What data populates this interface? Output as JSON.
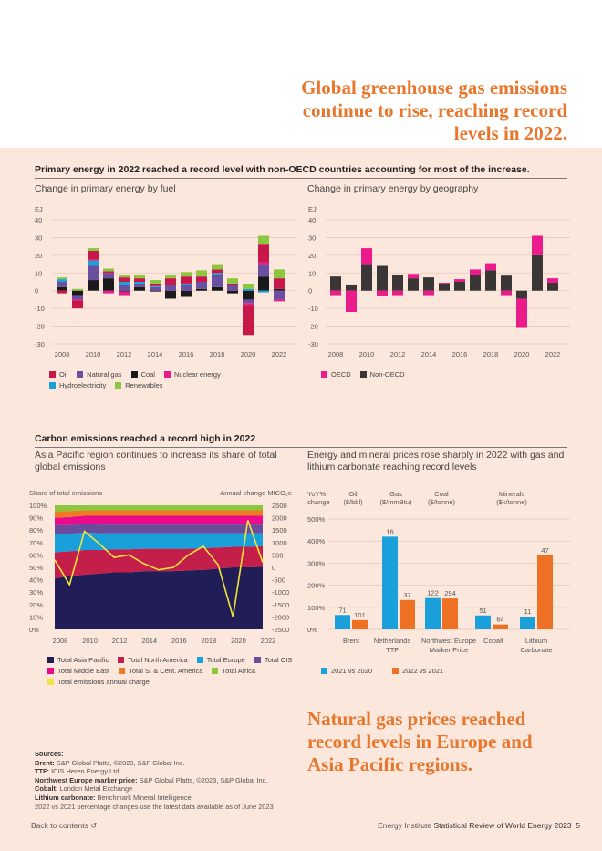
{
  "headline_top": "Global greenhouse gas emissions continue to rise, reaching record levels in 2022.",
  "headline_bottom": "Natural gas prices reached record levels in Europe and Asia Pacific regions.",
  "section1": {
    "title": "Primary energy in 2022 reached a record level with non-OECD countries accounting for most of the increase.",
    "left_sub": "Change in primary energy by fuel",
    "right_sub": "Change in primary energy by geography"
  },
  "section2": {
    "title": "Carbon emissions reached a record high in 2022",
    "left_sub": "Asia Pacific region continues to increase its share of total global emissions",
    "right_sub": "Energy and mineral prices rose sharply in 2022 with gas and lithium carbonate reaching record levels"
  },
  "colors": {
    "oil": "#c8184a",
    "gas": "#6b4fa0",
    "coal": "#1a1a1a",
    "nuclear": "#ec1b8c",
    "hydro": "#1ba0d8",
    "renewables": "#8dc63f",
    "oecd": "#ec1b8c",
    "nonoecd": "#3b3636",
    "ap": "#201d57",
    "na": "#c41e4a",
    "eu": "#19a0da",
    "cis": "#6a4c9c",
    "me": "#ea0b8c",
    "sca": "#f07a22",
    "af": "#8dc63f",
    "line": "#f3e43c",
    "y2021": "#1aa1dc",
    "y2022": "#ee7023",
    "headline": "#e8772e"
  },
  "chart_data": [
    {
      "type": "bar",
      "stacked": true,
      "title": "Change in primary energy by fuel",
      "ylabel": "EJ",
      "ylim": [
        -30,
        40
      ],
      "yticks": [
        40,
        30,
        20,
        10,
        0,
        -10,
        -20,
        -30
      ],
      "categories": [
        "2008",
        "2009",
        "2010",
        "2011",
        "2012",
        "2013",
        "2014",
        "2015",
        "2016",
        "2017",
        "2018",
        "2019",
        "2020",
        "2021",
        "2022"
      ],
      "xtick_labels": [
        "2008",
        "2010",
        "2012",
        "2014",
        "2016",
        "2018",
        "2020",
        "2022"
      ],
      "series": [
        {
          "key": "coal",
          "name": "Coal",
          "values": [
            2,
            -2.5,
            6,
            7,
            -0.5,
            2,
            -0.5,
            -4.5,
            -3.5,
            1,
            2,
            -1.5,
            -5,
            8,
            1
          ]
        },
        {
          "key": "gas",
          "name": "Natural gas",
          "values": [
            3,
            -2.5,
            8,
            3,
            3,
            2,
            2,
            3,
            3,
            4,
            7,
            3,
            -2,
            7,
            -5
          ]
        },
        {
          "key": "hydro",
          "name": "Hydroelectricity",
          "values": [
            1.5,
            0,
            3,
            0,
            2,
            1,
            0.5,
            0,
            1,
            0,
            1,
            0,
            1,
            -1,
            0
          ]
        },
        {
          "key": "nuclear",
          "name": "Nuclear energy",
          "values": [
            0,
            -0.5,
            0.5,
            -1.5,
            -2,
            0,
            0,
            0,
            0,
            0,
            0,
            0,
            -1,
            1,
            -1
          ]
        },
        {
          "key": "oil",
          "name": "Oil",
          "values": [
            -1.5,
            -4.5,
            5,
            1,
            2.5,
            2,
            1.5,
            4,
            4,
            3,
            2,
            1,
            -17,
            10,
            6
          ]
        },
        {
          "key": "renewables",
          "name": "Renewables",
          "values": [
            1,
            1,
            1.5,
            1.5,
            1.5,
            2,
            2,
            2,
            2.5,
            3.5,
            3,
            3,
            3,
            5,
            5
          ]
        }
      ]
    },
    {
      "type": "bar",
      "stacked": true,
      "title": "Change in primary energy by geography",
      "ylabel": "EJ",
      "ylim": [
        -30,
        40
      ],
      "yticks": [
        40,
        30,
        20,
        10,
        0,
        -10,
        -20,
        -30
      ],
      "categories": [
        "2008",
        "2009",
        "2010",
        "2011",
        "2012",
        "2013",
        "2014",
        "2015",
        "2016",
        "2017",
        "2018",
        "2019",
        "2020",
        "2021",
        "2022"
      ],
      "xtick_labels": [
        "2008",
        "2010",
        "2012",
        "2014",
        "2016",
        "2018",
        "2020",
        "2022"
      ],
      "series": [
        {
          "key": "nonoecd",
          "name": "Non-OECD",
          "values": [
            8,
            3.5,
            15,
            14,
            9,
            7,
            7.5,
            4,
            5,
            9,
            11.5,
            8.5,
            -4.5,
            20,
            4.5
          ]
        },
        {
          "key": "oecd",
          "name": "OECD",
          "values": [
            -2.5,
            -12,
            9,
            -3,
            -2.5,
            2.5,
            -2.5,
            0.5,
            1.5,
            3,
            4,
            -2.5,
            -16.5,
            11,
            2.5
          ]
        }
      ]
    },
    {
      "type": "area",
      "stacked": true,
      "ylabel": "Share of total emissions",
      "y2label": "Annual change MtCO₂e",
      "ylim": [
        0,
        100
      ],
      "y2lim": [
        -2500,
        2500
      ],
      "yticks": [
        "100%",
        "90%",
        "80%",
        "70%",
        "60%",
        "50%",
        "40%",
        "30%",
        "20%",
        "10%",
        "0%"
      ],
      "y2ticks": [
        "2500",
        "2000",
        "1500",
        "1000",
        "500",
        "0",
        "-500",
        "-1000",
        "-1500",
        "-2000",
        "-2500"
      ],
      "x": [
        "2008",
        "2009",
        "2010",
        "2011",
        "2012",
        "2013",
        "2014",
        "2015",
        "2016",
        "2017",
        "2018",
        "2019",
        "2020",
        "2021",
        "2022"
      ],
      "xtick_labels": [
        "2008",
        "2010",
        "2012",
        "2014",
        "2016",
        "2018",
        "2020",
        "2022"
      ],
      "series": [
        {
          "key": "ap",
          "name": "Total Asia Pacific",
          "values": [
            41,
            43,
            44,
            45,
            46,
            46,
            47,
            47,
            47,
            47.5,
            48,
            49,
            50,
            50,
            50.5
          ]
        },
        {
          "key": "na",
          "name": "Total North America",
          "values": [
            21,
            20,
            20,
            19,
            18.5,
            18.5,
            18,
            18,
            18,
            17.5,
            17.5,
            17,
            16.5,
            16.5,
            16.5
          ]
        },
        {
          "key": "eu",
          "name": "Total Europe",
          "values": [
            15,
            14,
            14,
            13.5,
            13,
            13,
            12.5,
            12.5,
            12.5,
            12.5,
            12,
            11.5,
            11,
            11,
            10.5
          ]
        },
        {
          "key": "cis",
          "name": "Total CIS",
          "values": [
            7,
            7,
            7,
            7,
            7,
            7,
            7,
            7,
            7,
            7,
            7,
            7,
            7,
            7,
            7
          ]
        },
        {
          "key": "me",
          "name": "Total Middle East",
          "values": [
            6,
            6.5,
            6.5,
            7,
            7,
            7,
            7,
            7,
            7,
            7,
            7,
            7,
            7,
            7,
            7
          ]
        },
        {
          "key": "sca",
          "name": "Total S. & Cent. America",
          "values": [
            5,
            5,
            4.5,
            4.5,
            4.5,
            4.5,
            4.5,
            4.5,
            4.5,
            4.5,
            4.5,
            4.5,
            4.5,
            4.5,
            4.5
          ]
        },
        {
          "key": "af",
          "name": "Total Africa",
          "values": [
            5,
            4.5,
            4,
            4,
            4,
            4,
            4,
            4,
            4,
            4,
            4,
            4,
            4,
            4,
            4
          ]
        }
      ],
      "line": {
        "key": "line",
        "name": "Total emissions annual charge",
        "values": [
          300,
          -700,
          1450,
          950,
          400,
          500,
          150,
          -100,
          0,
          500,
          850,
          100,
          -2000,
          1900,
          200
        ]
      }
    },
    {
      "type": "bar",
      "ylabel": "YoY% change",
      "ylim": [
        0,
        500
      ],
      "yticks": [
        "500%",
        "400%",
        "300%",
        "200%",
        "100%",
        "0%"
      ],
      "group_headers": [
        {
          "name": "Oil",
          "unit": "($/bbl)"
        },
        {
          "name": "Gas",
          "unit": "($/mmBtu)"
        },
        {
          "name": "Coal",
          "unit": "($/tonne)"
        },
        {
          "name": "Minerals",
          "unit": "($k/tonne)"
        }
      ],
      "categories": [
        [
          "Brent",
          ""
        ],
        [
          "Netherlands",
          "TTF"
        ],
        [
          "Northwest Europe",
          "Marker Price"
        ],
        [
          "Cobalt",
          ""
        ],
        [
          "Lithium",
          "Carbonate"
        ]
      ],
      "series": [
        {
          "key": "y2021",
          "name": "2021 vs 2020",
          "values": [
            65,
            420,
            142,
            63,
            57
          ],
          "labels": [
            "71",
            "16",
            "122",
            "51",
            "11"
          ]
        },
        {
          "key": "y2022",
          "name": "2022 vs 2021",
          "values": [
            42,
            133,
            140,
            22,
            335
          ],
          "labels": [
            "101",
            "37",
            "294",
            "64",
            "47"
          ]
        }
      ]
    }
  ],
  "sources": {
    "heading": "Sources:",
    "lines": [
      {
        "k": "Brent:",
        "v": "S&P Global Platts, ©2023, S&P Global Inc."
      },
      {
        "k": "TTF:",
        "v": "ICIS Heren Energy Ltd"
      },
      {
        "k": "Northwest Europe marker price:",
        "v": "S&P Global Platts, ©2023, S&P Global Inc."
      },
      {
        "k": "Cobalt:",
        "v": "London Metal Exchange"
      },
      {
        "k": "Lithium carbonate:",
        "v": "Benchmark Mineral Intelligence"
      },
      {
        "k": "",
        "v": "2022 vs 2021 percentage changes use the latest data available as of June 2023"
      }
    ]
  },
  "nav": {
    "back": "Back to contents ↺"
  },
  "footer": {
    "org": "Energy Institute",
    "title": "Statistical Review of World Energy 2023",
    "page": "5"
  }
}
